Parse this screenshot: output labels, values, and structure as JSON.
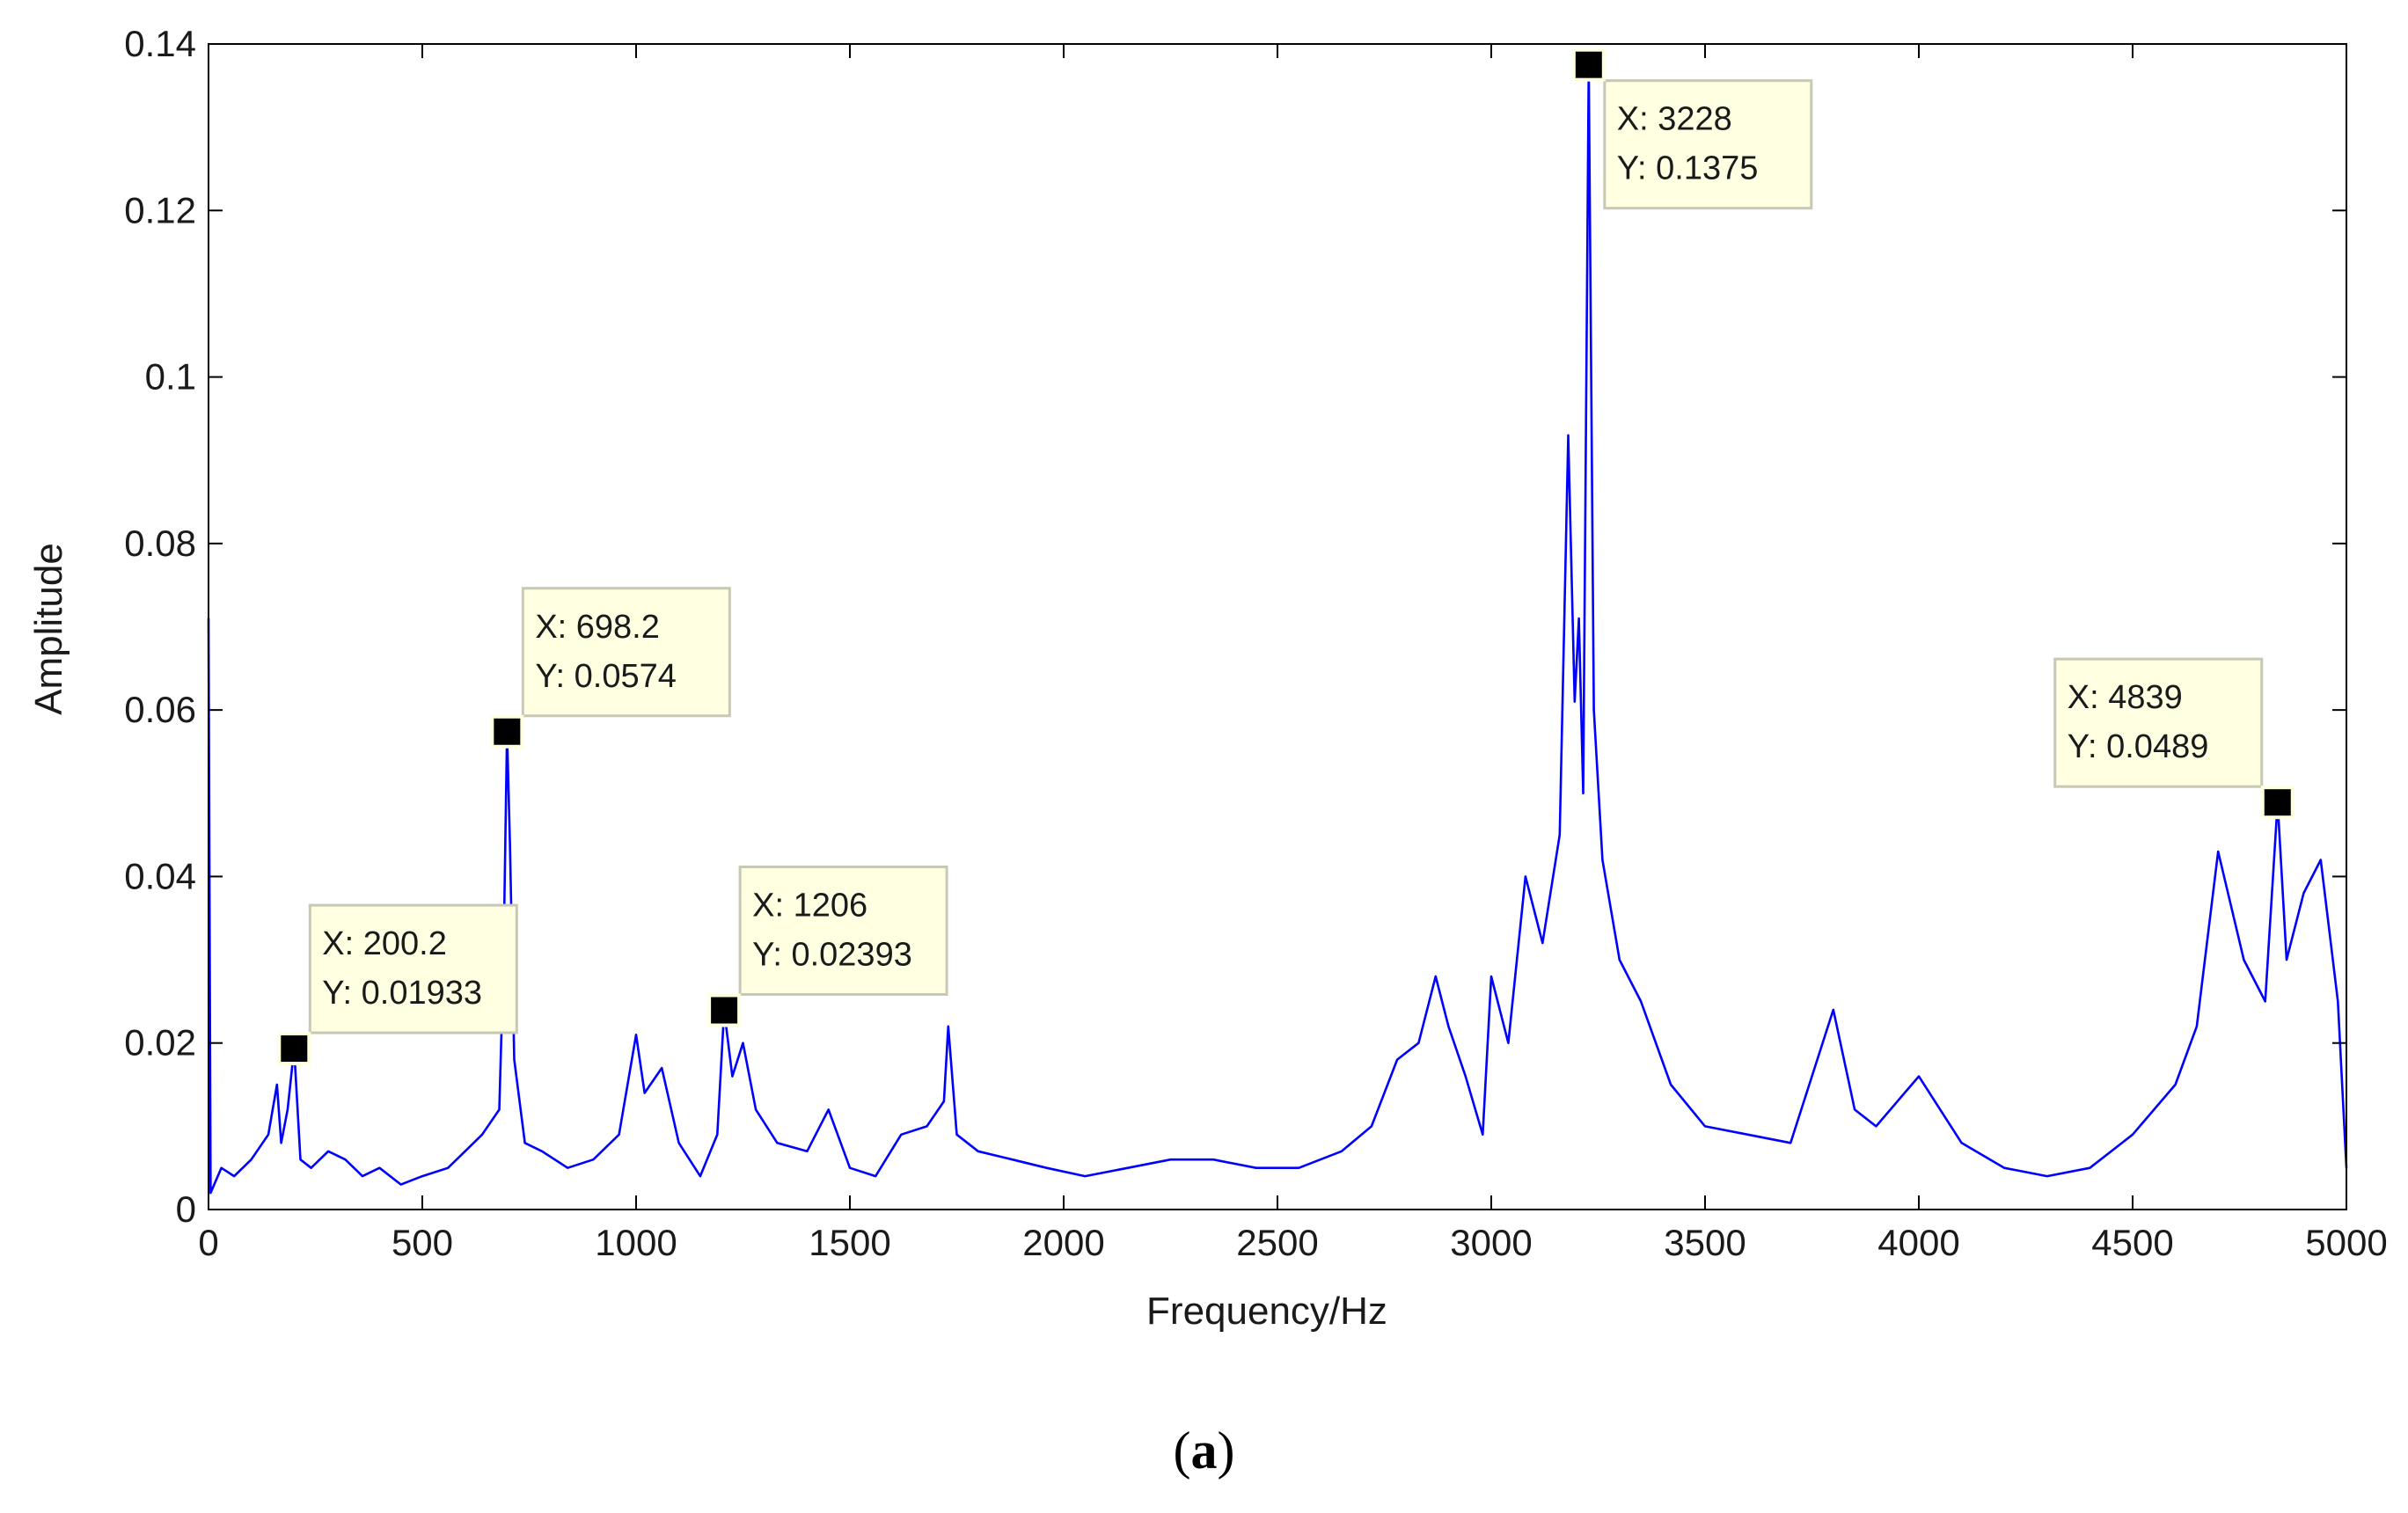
{
  "chart_data": {
    "type": "line",
    "title": "",
    "xlabel": "Frequency/Hz",
    "ylabel": "Amplitude",
    "xlim": [
      0,
      5000
    ],
    "ylim": [
      0,
      0.14
    ],
    "x_ticks": [
      "0",
      "500",
      "1000",
      "1500",
      "2000",
      "2500",
      "3000",
      "3500",
      "4000",
      "4500",
      "5000"
    ],
    "y_ticks": [
      "0",
      "0.02",
      "0.04",
      "0.06",
      "0.08",
      "0.1",
      "0.12",
      "0.14"
    ],
    "grid": false,
    "series": [
      {
        "color": "#0000ff",
        "x": [
          0,
          5,
          30,
          60,
          100,
          140,
          160,
          170,
          185,
          200.2,
          215,
          240,
          280,
          320,
          360,
          400,
          450,
          500,
          560,
          600,
          640,
          680,
          690,
          698.2,
          705,
          715,
          740,
          780,
          840,
          900,
          960,
          1000,
          1020,
          1060,
          1100,
          1150,
          1190,
          1206,
          1225,
          1250,
          1280,
          1330,
          1400,
          1450,
          1500,
          1560,
          1620,
          1680,
          1720,
          1730,
          1750,
          1800,
          1880,
          1960,
          2050,
          2150,
          2250,
          2350,
          2450,
          2550,
          2650,
          2720,
          2780,
          2830,
          2870,
          2900,
          2940,
          2980,
          3000,
          3040,
          3080,
          3120,
          3160,
          3180,
          3195,
          3205,
          3215,
          3228,
          3240,
          3260,
          3300,
          3350,
          3420,
          3500,
          3600,
          3700,
          3800,
          3850,
          3900,
          4000,
          4100,
          4200,
          4300,
          4400,
          4500,
          4600,
          4650,
          4700,
          4760,
          4810,
          4839,
          4860,
          4900,
          4940,
          4980,
          5000
        ],
        "y": [
          0.071,
          0.002,
          0.005,
          0.004,
          0.006,
          0.009,
          0.015,
          0.008,
          0.012,
          0.01933,
          0.006,
          0.005,
          0.007,
          0.006,
          0.004,
          0.005,
          0.003,
          0.004,
          0.005,
          0.007,
          0.009,
          0.012,
          0.03,
          0.0574,
          0.044,
          0.018,
          0.008,
          0.007,
          0.005,
          0.006,
          0.009,
          0.021,
          0.014,
          0.017,
          0.008,
          0.004,
          0.009,
          0.02393,
          0.016,
          0.02,
          0.012,
          0.008,
          0.007,
          0.012,
          0.005,
          0.004,
          0.009,
          0.01,
          0.013,
          0.022,
          0.009,
          0.007,
          0.006,
          0.005,
          0.004,
          0.005,
          0.006,
          0.006,
          0.005,
          0.005,
          0.007,
          0.01,
          0.018,
          0.02,
          0.028,
          0.022,
          0.016,
          0.009,
          0.028,
          0.02,
          0.04,
          0.032,
          0.045,
          0.093,
          0.061,
          0.071,
          0.05,
          0.1375,
          0.06,
          0.042,
          0.03,
          0.025,
          0.015,
          0.01,
          0.009,
          0.008,
          0.024,
          0.012,
          0.01,
          0.016,
          0.008,
          0.005,
          0.004,
          0.005,
          0.009,
          0.015,
          0.022,
          0.043,
          0.03,
          0.025,
          0.0489,
          0.03,
          0.038,
          0.042,
          0.025,
          0.005
        ]
      }
    ],
    "annotations": [
      {
        "x": 200.2,
        "y": 0.01933,
        "line1": "X: 200.2",
        "line2": "Y: 0.01933",
        "side": "above-right"
      },
      {
        "x": 698.2,
        "y": 0.0574,
        "line1": "X: 698.2",
        "line2": "Y: 0.0574",
        "side": "above-right"
      },
      {
        "x": 1206,
        "y": 0.02393,
        "line1": "X: 1206",
        "line2": "Y: 0.02393",
        "side": "above-right"
      },
      {
        "x": 3228,
        "y": 0.1375,
        "line1": "X: 3228",
        "line2": "Y: 0.1375",
        "side": "below-right"
      },
      {
        "x": 4839,
        "y": 0.0489,
        "line1": "X: 4839",
        "line2": "Y: 0.0489",
        "side": "above-left"
      }
    ]
  },
  "caption": {
    "prefix": "(",
    "label": "a",
    "suffix": ")"
  },
  "colors": {
    "line": "#0000ff",
    "tooltip_bg": "#ffffe1",
    "tooltip_border": "#c8c8b4",
    "marker": "#000000"
  }
}
